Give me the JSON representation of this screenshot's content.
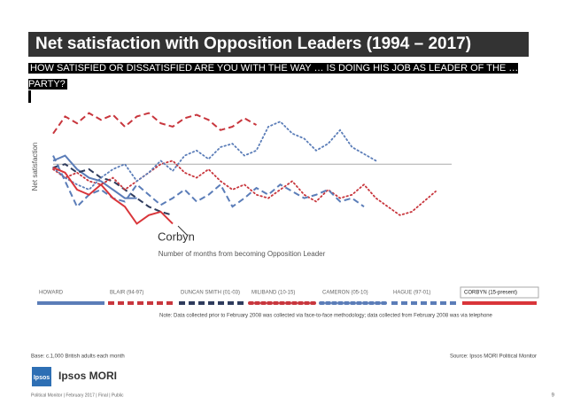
{
  "chart_data": {
    "type": "line",
    "title": "Net satisfaction with Opposition Leaders (1994 – 2017)",
    "subtitle": "HOW SATISFIED OR DISSATISFIED ARE YOU WITH THE WAY … IS DOING HIS JOB AS LEADER OF THE … PARTY?",
    "y_label": "Net satisfaction",
    "x_label": "Number of months from becoming Opposition Leader",
    "annotation": "Corbyn",
    "xlim": [
      0,
      100
    ],
    "ylim": [
      -40,
      35
    ],
    "x": [
      0,
      3,
      6,
      9,
      12,
      15,
      18,
      21,
      24,
      27,
      30,
      33,
      36,
      39,
      42,
      45,
      48,
      51,
      54,
      57,
      60,
      63,
      66,
      69,
      72,
      75,
      78,
      81,
      84,
      87,
      90,
      93,
      96
    ],
    "series": [
      {
        "name": "HOWARD",
        "color": "#5b7db8",
        "dash": "solid",
        "values": [
          2,
          5,
          -3,
          -8,
          -10,
          -15,
          -20,
          -20,
          null,
          null,
          null,
          null,
          null,
          null,
          null,
          null,
          null,
          null,
          null,
          null,
          null,
          null,
          null,
          null,
          null,
          null,
          null,
          null,
          null,
          null,
          null,
          null,
          null
        ]
      },
      {
        "name": "BLAIR (94-97)",
        "color": "#c8363d",
        "dash": "dashed",
        "values": [
          18,
          28,
          24,
          30,
          26,
          29,
          22,
          28,
          30,
          24,
          22,
          27,
          29,
          26,
          20,
          22,
          27,
          23,
          null,
          null,
          null,
          null,
          null,
          null,
          null,
          null,
          null,
          null,
          null,
          null,
          null,
          null,
          null
        ]
      },
      {
        "name": "DUNCAN SMITH (01-03)",
        "color": "#2e3b5c",
        "dash": "dashed",
        "values": [
          -2,
          0,
          -5,
          -3,
          -8,
          -10,
          -15,
          -20,
          -25,
          -28,
          -30,
          null,
          null,
          null,
          null,
          null,
          null,
          null,
          null,
          null,
          null,
          null,
          null,
          null,
          null,
          null,
          null,
          null,
          null,
          null,
          null,
          null,
          null
        ]
      },
      {
        "name": "MILIBAND (10-15)",
        "color": "#c8363d",
        "dash": "dotted",
        "values": [
          -3,
          -8,
          -5,
          -10,
          -12,
          -8,
          -15,
          -10,
          -5,
          0,
          2,
          -5,
          -8,
          -3,
          -10,
          -15,
          -12,
          -18,
          -20,
          -15,
          -10,
          -18,
          -22,
          -15,
          -20,
          -18,
          -12,
          -20,
          -25,
          -30,
          -28,
          -22,
          -16
        ]
      },
      {
        "name": "CAMERON (05-10)",
        "color": "#5b7db8",
        "dash": "dotted",
        "values": [
          -2,
          -8,
          -12,
          -15,
          -8,
          -3,
          0,
          -10,
          -5,
          2,
          -4,
          5,
          8,
          3,
          10,
          12,
          5,
          8,
          22,
          25,
          18,
          15,
          8,
          12,
          20,
          10,
          6,
          2,
          null,
          null,
          null,
          null,
          null
        ]
      },
      {
        "name": "HAGUE (97-01)",
        "color": "#5b7db8",
        "dash": "dashed",
        "values": [
          5,
          -10,
          -25,
          -18,
          -15,
          -20,
          -22,
          -12,
          -18,
          -24,
          -20,
          -15,
          -22,
          -18,
          -12,
          -25,
          -20,
          -14,
          -18,
          -12,
          -16,
          -20,
          -18,
          -15,
          -22,
          -20,
          -25,
          null,
          null,
          null,
          null,
          null,
          null
        ]
      },
      {
        "name": "CORBYN (15-present)",
        "color": "#d9353a",
        "dash": "solid",
        "values": [
          -2,
          -5,
          -15,
          -18,
          -12,
          -20,
          -25,
          -35,
          -30,
          -28,
          -35,
          null,
          null,
          null,
          null,
          null,
          null,
          null,
          null,
          null,
          null,
          null,
          null,
          null,
          null,
          null,
          null,
          null,
          null,
          null,
          null,
          null,
          null
        ]
      }
    ]
  },
  "slide": {
    "note": "Note: Data collected prior to February 2008 was collected via face-to-face methodology; data collected from February 2008 was via telephone",
    "base": "Base: c.1,000 British adults each month",
    "source": "Source: Ipsos MORI Political Monitor",
    "logo_mark": "Ipsos",
    "logo_name": "Ipsos MORI",
    "footer": "Political Monitor | February 2017 | Final | Public",
    "page": "9"
  }
}
